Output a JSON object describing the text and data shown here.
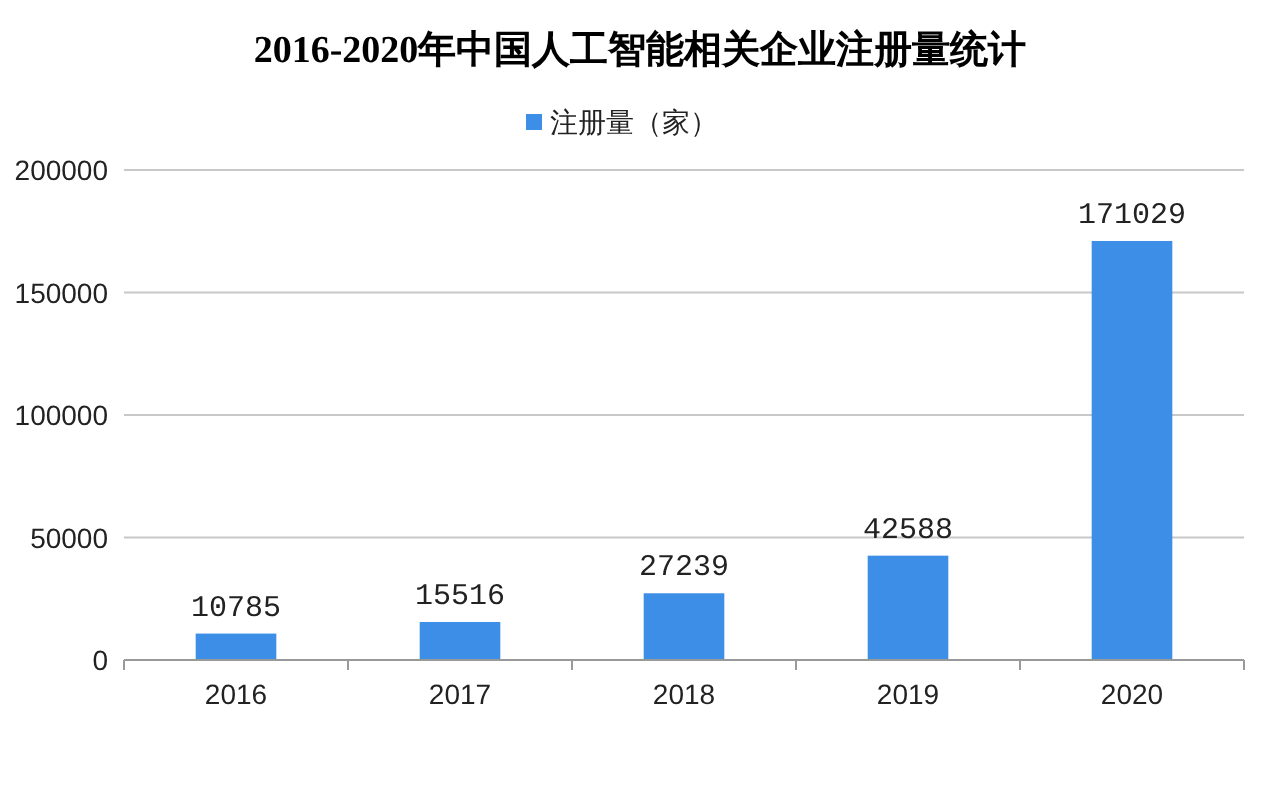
{
  "chart_data": {
    "type": "bar",
    "title": "2016-2020年中国人工智能相关企业注册量统计",
    "categories": [
      "2016",
      "2017",
      "2018",
      "2019",
      "2020"
    ],
    "series": [
      {
        "name": "注册量（家）",
        "color": "#3d8ee6",
        "values": [
          10785,
          15516,
          27239,
          42588,
          171029
        ]
      }
    ],
    "ylim": [
      0,
      200000
    ],
    "yticks": [
      0,
      50000,
      100000,
      150000,
      200000
    ],
    "grid": "y",
    "legend": "top",
    "data_labels": true
  }
}
